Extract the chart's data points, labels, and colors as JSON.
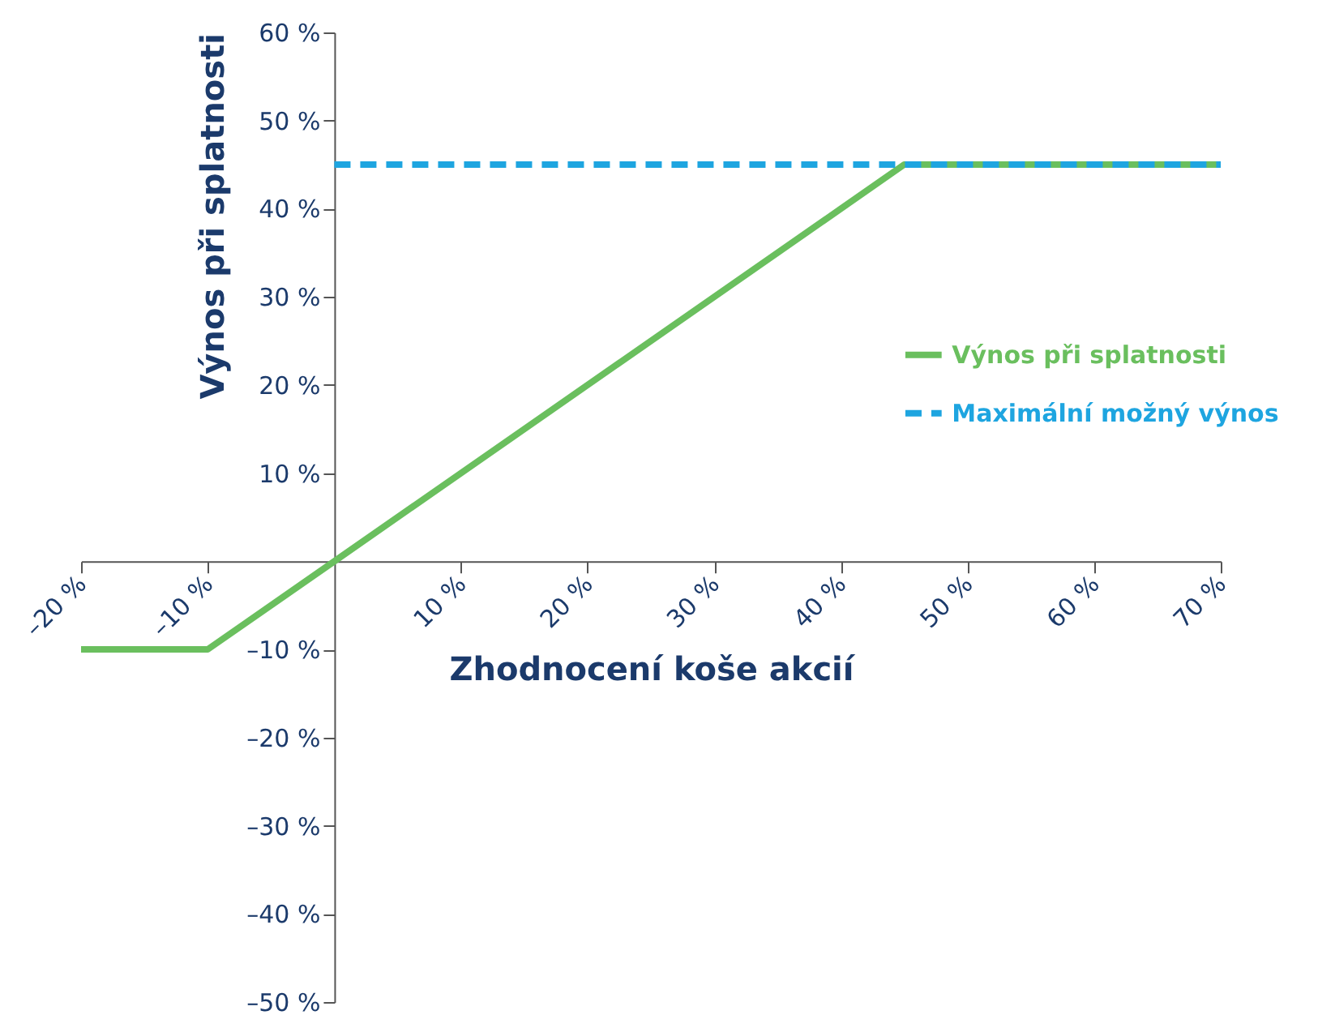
{
  "chart_data": {
    "type": "line",
    "xlabel": "Zhodnocení koše akcií",
    "ylabel": "Výnos při splatnosti",
    "series": [
      {
        "name": "Výnos při splatnosti",
        "color": "#6abf5e",
        "x": [
          -20,
          -10,
          0,
          45,
          70
        ],
        "values": [
          -10,
          -10,
          0,
          45,
          45
        ],
        "line_style": "solid"
      },
      {
        "name": "Maximální možný výnos",
        "color": "#1ea5e0",
        "x": [
          0,
          70
        ],
        "values": [
          45,
          45
        ],
        "line_style": "dashed"
      }
    ],
    "xlim": [
      -20,
      70
    ],
    "ylim": [
      -50,
      60
    ],
    "xticks": [
      {
        "value": -20,
        "label": "–20 %"
      },
      {
        "value": -10,
        "label": "–10 %"
      },
      {
        "value": 10,
        "label": "10 %"
      },
      {
        "value": 20,
        "label": "20 %"
      },
      {
        "value": 30,
        "label": "30 %"
      },
      {
        "value": 40,
        "label": "40 %"
      },
      {
        "value": 50,
        "label": "50 %"
      },
      {
        "value": 60,
        "label": "60 %"
      },
      {
        "value": 70,
        "label": "70 %"
      }
    ],
    "yticks": [
      {
        "value": -50,
        "label": "–50 %"
      },
      {
        "value": -40,
        "label": "–40 %"
      },
      {
        "value": -30,
        "label": "–30 %"
      },
      {
        "value": -20,
        "label": "–20 %"
      },
      {
        "value": -10,
        "label": "–10 %"
      },
      {
        "value": 10,
        "label": "10 %"
      },
      {
        "value": 20,
        "label": "20 %"
      },
      {
        "value": 30,
        "label": "30 %"
      },
      {
        "value": 40,
        "label": "40 %"
      },
      {
        "value": 50,
        "label": "50 %"
      },
      {
        "value": 60,
        "label": "60 %"
      }
    ],
    "grid": false,
    "legend": "right",
    "marker": "none"
  }
}
